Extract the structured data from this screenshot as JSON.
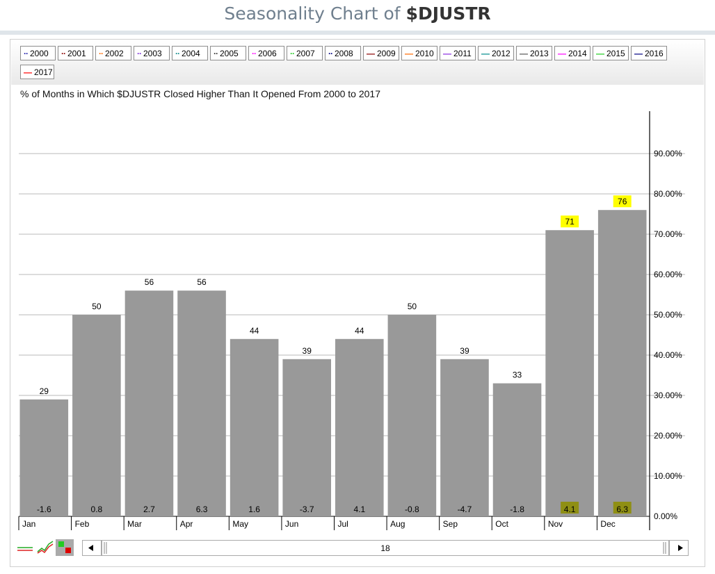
{
  "header": {
    "prefix": "Seasonality Chart of",
    "symbol": "$DJUSTR"
  },
  "legend": [
    {
      "label": "2000",
      "color": "#1c1caa",
      "style": "dotted"
    },
    {
      "label": "2001",
      "color": "#8b0000",
      "style": "dotted"
    },
    {
      "label": "2002",
      "color": "#ff6a00",
      "style": "dotted"
    },
    {
      "label": "2003",
      "color": "#7b2bd8",
      "style": "dotted"
    },
    {
      "label": "2004",
      "color": "#0e8a8a",
      "style": "dotted"
    },
    {
      "label": "2005",
      "color": "#333333",
      "style": "dotted"
    },
    {
      "label": "2006",
      "color": "#ff00ff",
      "style": "dotted"
    },
    {
      "label": "2007",
      "color": "#22cc22",
      "style": "dotted"
    },
    {
      "label": "2008",
      "color": "#000080",
      "style": "dotted"
    },
    {
      "label": "2009",
      "color": "#8b0000",
      "style": "solid"
    },
    {
      "label": "2010",
      "color": "#ff6a00",
      "style": "solid"
    },
    {
      "label": "2011",
      "color": "#8a2be2",
      "style": "solid"
    },
    {
      "label": "2012",
      "color": "#008b8b",
      "style": "solid"
    },
    {
      "label": "2013",
      "color": "#555555",
      "style": "solid"
    },
    {
      "label": "2014",
      "color": "#ff00ff",
      "style": "solid"
    },
    {
      "label": "2015",
      "color": "#22cc22",
      "style": "solid"
    },
    {
      "label": "2016",
      "color": "#000080",
      "style": "solid"
    },
    {
      "label": "2017",
      "color": "#ff0000",
      "style": "solid"
    }
  ],
  "chart_data": {
    "type": "bar",
    "title": "% of Months in Which $DJUSTR Closed Higher Than It Opened From 2000 to 2017",
    "categories": [
      "Jan",
      "Feb",
      "Mar",
      "Apr",
      "May",
      "Jun",
      "Jul",
      "Aug",
      "Sep",
      "Oct",
      "Nov",
      "Dec"
    ],
    "values": [
      29,
      50,
      56,
      56,
      44,
      39,
      44,
      50,
      39,
      33,
      71,
      76
    ],
    "bar_value_labels": [
      "29",
      "50",
      "56",
      "56",
      "44",
      "39",
      "44",
      "50",
      "39",
      "33",
      "71",
      "76"
    ],
    "avg_returns": [
      "-1.6",
      "0.8",
      "2.7",
      "6.3",
      "1.6",
      "-3.7",
      "4.1",
      "-0.8",
      "-4.7",
      "-1.8",
      "4.1",
      "6.3"
    ],
    "highlighted": [
      false,
      false,
      false,
      false,
      false,
      false,
      false,
      false,
      false,
      false,
      true,
      true
    ],
    "yticks": [
      "0.00%",
      "10.00%",
      "20.00%",
      "30.00%",
      "40.00%",
      "50.00%",
      "60.00%",
      "70.00%",
      "80.00%",
      "90.00%"
    ],
    "ylim": [
      0,
      100
    ],
    "grid": true,
    "y_axis_side": "right",
    "bar_color": "#999999",
    "highlight_color": "#ffff00"
  },
  "controls": {
    "scroll_value": "18"
  }
}
